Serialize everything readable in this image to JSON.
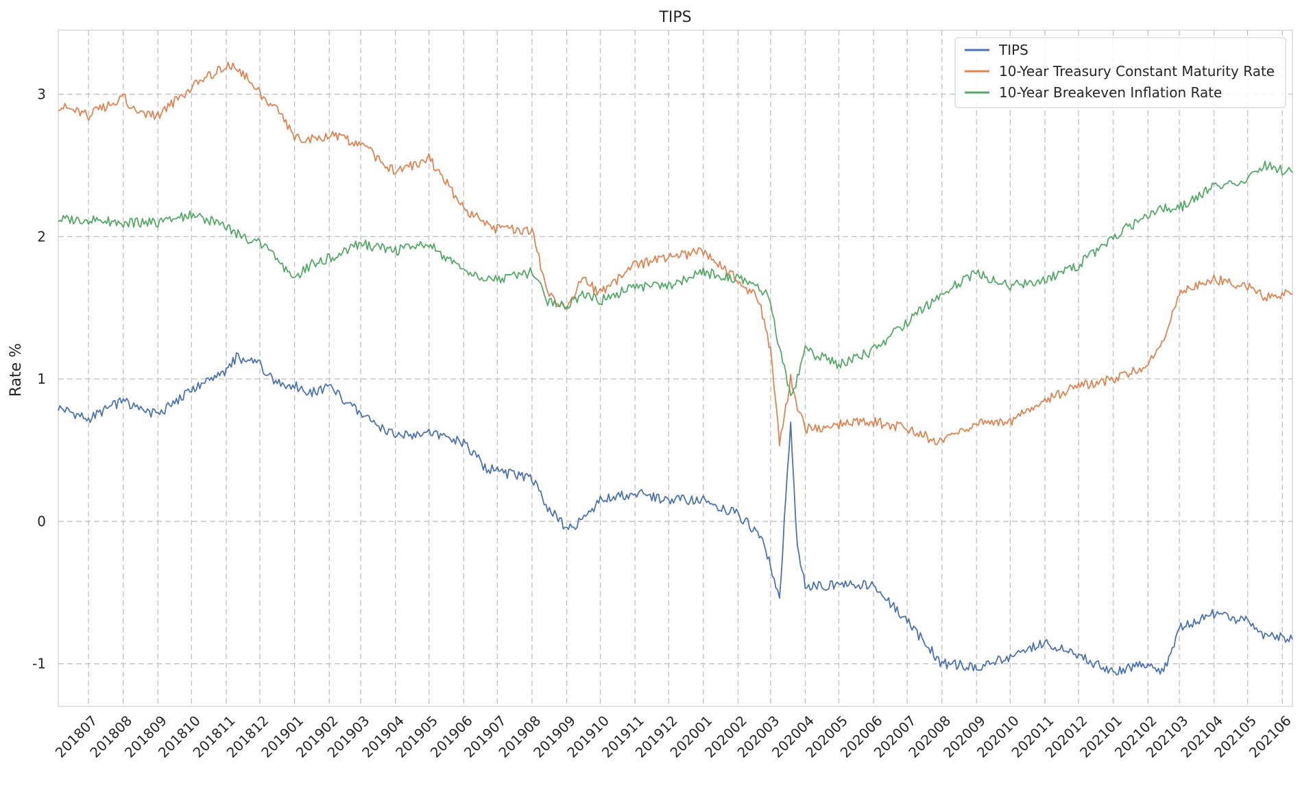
{
  "chart_data": {
    "type": "line",
    "title": "TIPS",
    "xlabel": "",
    "ylabel": "Rate %",
    "ylim": [
      -1.3,
      3.45
    ],
    "xlim": [
      "2018-06-04",
      "2021-06-10"
    ],
    "yticks": [
      -1,
      0,
      1,
      2,
      3
    ],
    "xticks": [
      "201807",
      "201808",
      "201809",
      "201810",
      "201811",
      "201812",
      "201901",
      "201902",
      "201903",
      "201904",
      "201905",
      "201906",
      "201907",
      "201908",
      "201909",
      "201910",
      "201911",
      "201912",
      "202001",
      "202002",
      "202003",
      "202004",
      "202005",
      "202006",
      "202007",
      "202008",
      "202009",
      "202010",
      "202011",
      "202012",
      "202101",
      "202102",
      "202103",
      "202104",
      "202105",
      "202106"
    ],
    "grid": true,
    "legend": "top-right",
    "x": [
      "2018-06-04",
      "2018-07-01",
      "2018-08-01",
      "2018-08-15",
      "2018-09-01",
      "2018-10-01",
      "2018-11-01",
      "2018-11-10",
      "2018-12-01",
      "2018-12-15",
      "2019-01-01",
      "2019-01-15",
      "2019-02-01",
      "2019-03-01",
      "2019-04-01",
      "2019-05-01",
      "2019-06-01",
      "2019-06-20",
      "2019-07-01",
      "2019-08-01",
      "2019-08-15",
      "2019-09-01",
      "2019-09-15",
      "2019-10-01",
      "2019-11-01",
      "2019-12-01",
      "2020-01-01",
      "2020-02-01",
      "2020-02-20",
      "2020-03-01",
      "2020-03-09",
      "2020-03-19",
      "2020-03-25",
      "2020-04-01",
      "2020-05-01",
      "2020-06-01",
      "2020-07-01",
      "2020-08-01",
      "2020-09-01",
      "2020-10-01",
      "2020-11-01",
      "2020-12-01",
      "2021-01-01",
      "2021-02-01",
      "2021-02-15",
      "2021-03-01",
      "2021-04-01",
      "2021-05-01",
      "2021-05-15",
      "2021-06-10"
    ],
    "series": [
      {
        "name": "TIPS",
        "color": "#4c72b0",
        "values": [
          0.8,
          0.72,
          0.85,
          0.78,
          0.75,
          0.92,
          1.05,
          1.15,
          1.1,
          0.98,
          0.95,
          0.9,
          0.95,
          0.75,
          0.6,
          0.62,
          0.55,
          0.38,
          0.35,
          0.3,
          0.1,
          -0.05,
          0.0,
          0.15,
          0.2,
          0.15,
          0.15,
          0.05,
          -0.1,
          -0.3,
          -0.55,
          0.7,
          -0.2,
          -0.45,
          -0.45,
          -0.45,
          -0.7,
          -1.0,
          -1.02,
          -0.95,
          -0.85,
          -0.95,
          -1.05,
          -1.0,
          -1.05,
          -0.75,
          -0.65,
          -0.7,
          -0.8,
          -0.83
        ]
      },
      {
        "name": "10-Year Treasury Constant Maturity Rate",
        "color": "#dd8452",
        "values": [
          2.92,
          2.85,
          2.98,
          2.85,
          2.85,
          3.05,
          3.2,
          3.2,
          3.0,
          2.9,
          2.7,
          2.68,
          2.72,
          2.65,
          2.45,
          2.55,
          2.2,
          2.1,
          2.05,
          2.05,
          1.6,
          1.5,
          1.7,
          1.6,
          1.8,
          1.85,
          1.9,
          1.7,
          1.55,
          1.2,
          0.55,
          1.0,
          0.8,
          0.65,
          0.68,
          0.7,
          0.65,
          0.55,
          0.7,
          0.7,
          0.85,
          0.95,
          1.0,
          1.1,
          1.25,
          1.6,
          1.7,
          1.65,
          1.58,
          1.6
        ]
      },
      {
        "name": "10-Year Breakeven Inflation Rate",
        "color": "#55a868",
        "values": [
          2.12,
          2.12,
          2.1,
          2.1,
          2.1,
          2.15,
          2.08,
          2.02,
          1.95,
          1.85,
          1.7,
          1.8,
          1.85,
          1.95,
          1.9,
          1.95,
          1.75,
          1.7,
          1.7,
          1.75,
          1.55,
          1.5,
          1.6,
          1.55,
          1.65,
          1.65,
          1.75,
          1.7,
          1.65,
          1.55,
          1.2,
          0.9,
          1.0,
          1.2,
          1.1,
          1.2,
          1.4,
          1.6,
          1.75,
          1.65,
          1.7,
          1.8,
          2.0,
          2.15,
          2.2,
          2.2,
          2.35,
          2.4,
          2.5,
          2.45
        ]
      }
    ]
  }
}
